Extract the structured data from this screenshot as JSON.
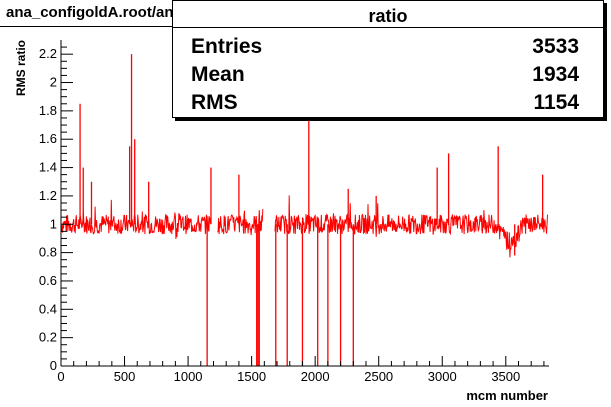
{
  "title": "ana_configoldA.root/ana_configoldC.root",
  "stats": {
    "name": "ratio",
    "rows": [
      {
        "label": "Entries",
        "value": "3533"
      },
      {
        "label": "Mean",
        "value": "1934"
      },
      {
        "label": "RMS",
        "value": "1154"
      }
    ]
  },
  "colors": {
    "line": "#ff0000",
    "axis": "#000000"
  },
  "chart_data": {
    "type": "line",
    "xlabel": "mcm number",
    "ylabel": "RMS ratio",
    "xlim": [
      0,
      3840
    ],
    "ylim": [
      0,
      2.3
    ],
    "xticks": [
      0,
      500,
      1000,
      1500,
      2000,
      2500,
      3000,
      3500
    ],
    "yticks": [
      0,
      0.2,
      0.4,
      0.6,
      0.8,
      1,
      1.2,
      1.4,
      1.6,
      1.8,
      2,
      2.2
    ],
    "baseline": 1.0,
    "spikes": [
      {
        "x": 150,
        "y": 1.85
      },
      {
        "x": 175,
        "y": 1.4
      },
      {
        "x": 240,
        "y": 1.3
      },
      {
        "x": 540,
        "y": 1.55
      },
      {
        "x": 555,
        "y": 2.2
      },
      {
        "x": 580,
        "y": 1.6
      },
      {
        "x": 690,
        "y": 1.3
      },
      {
        "x": 1180,
        "y": 1.4
      },
      {
        "x": 1400,
        "y": 1.35
      },
      {
        "x": 1950,
        "y": 1.8
      },
      {
        "x": 2260,
        "y": 1.25
      },
      {
        "x": 2480,
        "y": 1.2
      },
      {
        "x": 2960,
        "y": 1.4
      },
      {
        "x": 3050,
        "y": 1.5
      },
      {
        "x": 3440,
        "y": 1.55
      },
      {
        "x": 3790,
        "y": 1.35
      }
    ],
    "dropouts": [
      {
        "x": 1150,
        "y": 0.0
      },
      {
        "x": 1540,
        "y": 0.0
      },
      {
        "x": 1550,
        "y": 0.0
      },
      {
        "x": 1560,
        "y": 0.0
      },
      {
        "x": 1690,
        "y": 0.0
      },
      {
        "x": 1780,
        "y": 0.0
      },
      {
        "x": 1900,
        "y": 0.0
      },
      {
        "x": 2020,
        "y": 0.0
      },
      {
        "x": 2100,
        "y": 0.0
      },
      {
        "x": 2200,
        "y": 0.0
      },
      {
        "x": 2300,
        "y": 0.0
      },
      {
        "x": 3570,
        "y": 0.78
      }
    ],
    "gaps": [
      [
        1180,
        1230
      ],
      [
        1590,
        1680
      ]
    ]
  }
}
